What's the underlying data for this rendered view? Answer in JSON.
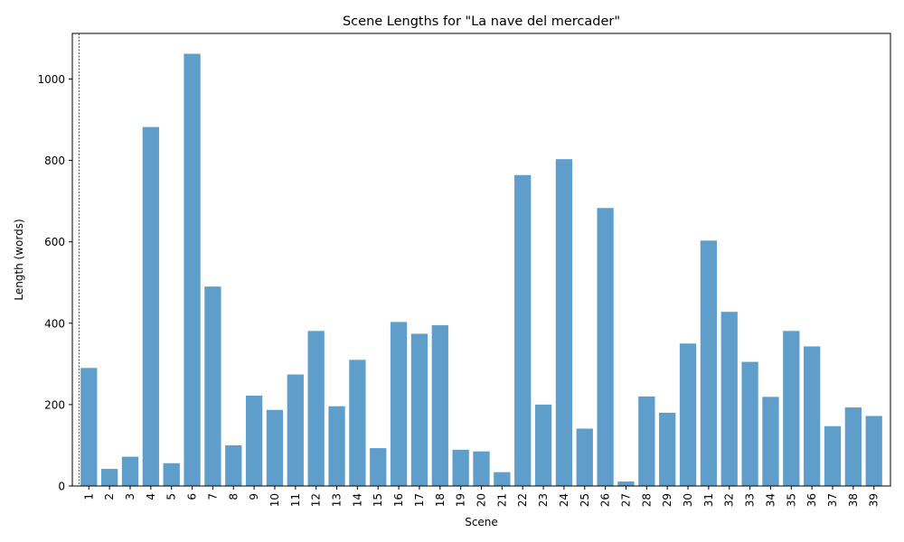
{
  "chart_data": {
    "type": "bar",
    "title": "Scene Lengths for \"La nave del mercader\"",
    "xlabel": "Scene",
    "ylabel": "Length (words)",
    "categories": [
      "1",
      "2",
      "3",
      "4",
      "5",
      "6",
      "7",
      "8",
      "9",
      "10",
      "11",
      "12",
      "13",
      "14",
      "15",
      "16",
      "17",
      "18",
      "19",
      "20",
      "21",
      "22",
      "23",
      "24",
      "25",
      "26",
      "27",
      "28",
      "29",
      "30",
      "31",
      "32",
      "33",
      "34",
      "35",
      "36",
      "37",
      "38",
      "39"
    ],
    "values": [
      290,
      42,
      72,
      882,
      56,
      1062,
      490,
      100,
      222,
      187,
      274,
      381,
      196,
      310,
      93,
      403,
      374,
      395,
      89,
      85,
      34,
      764,
      200,
      803,
      141,
      683,
      11,
      220,
      180,
      350,
      603,
      428,
      305,
      219,
      381,
      343,
      147,
      193,
      172
    ],
    "ylim": [
      0,
      1112
    ],
    "yticks": [
      0,
      200,
      400,
      600,
      800,
      1000
    ],
    "bar_color": "#5f9ecb",
    "reference_line": {
      "x_category": "1",
      "style": "dashed",
      "color": "#000000"
    },
    "grid": false,
    "legend": "none"
  }
}
